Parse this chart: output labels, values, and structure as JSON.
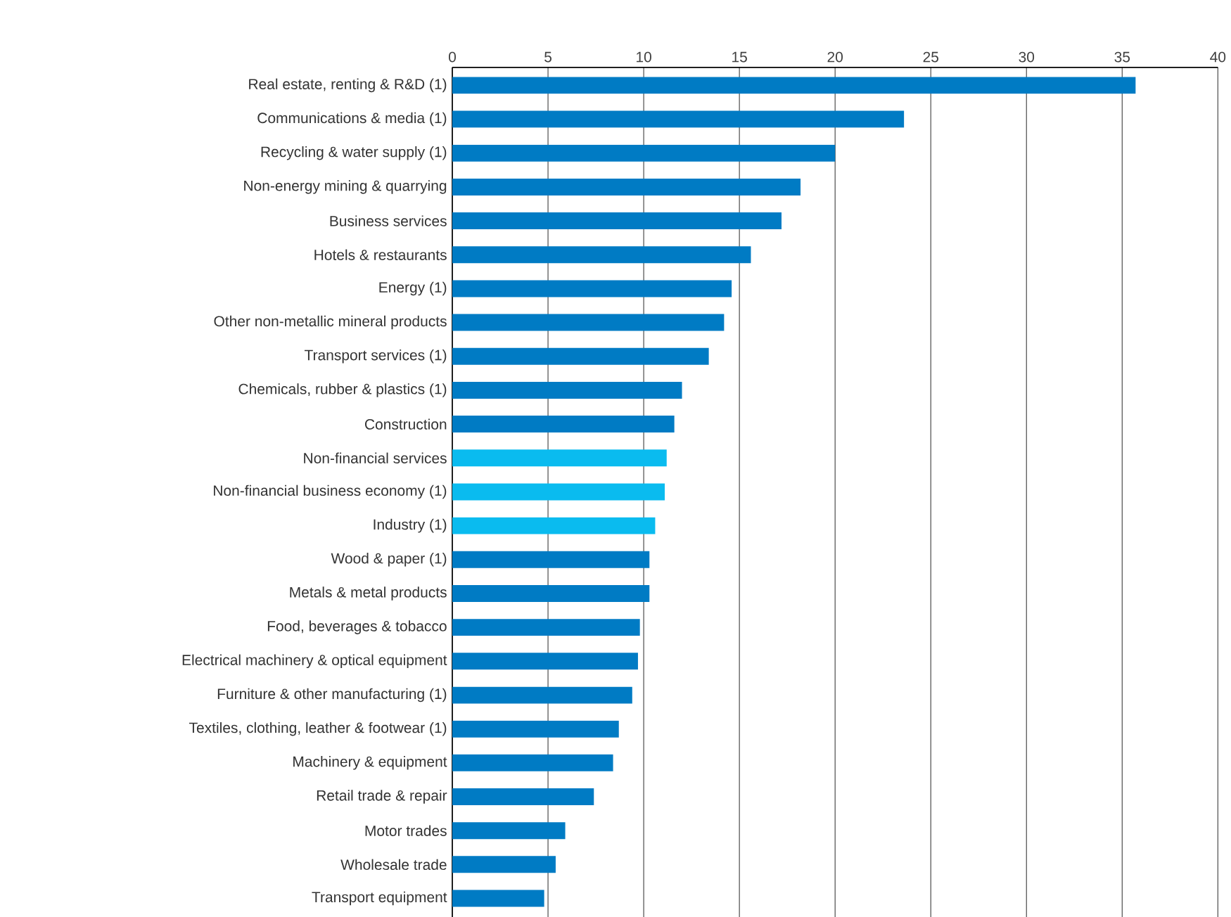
{
  "chart_data": {
    "type": "bar",
    "orientation": "horizontal",
    "categories": [
      "Real estate, renting & R&D (1)",
      "Communications & media (1)",
      "Recycling & water supply (1)",
      "Non-energy mining & quarrying",
      "Business services",
      "Hotels & restaurants",
      "Energy (1)",
      "Other non-metallic mineral products",
      "Transport services (1)",
      "Chemicals, rubber & plastics (1)",
      "Construction",
      "Non-financial services",
      "Non-financial business economy (1)",
      "Industry (1)",
      "Wood & paper (1)",
      "Metals & metal products",
      "Food, beverages & tobacco",
      "Electrical machinery & optical equipment",
      "Furniture & other manufacturing (1)",
      "Textiles, clothing, leather & footwear (1)",
      "Machinery & equipment",
      "Retail trade & repair",
      "Motor trades",
      "Wholesale trade",
      "Transport equipment"
    ],
    "values": [
      35.7,
      23.6,
      20.0,
      18.2,
      17.2,
      15.6,
      14.6,
      14.2,
      13.4,
      12.0,
      11.6,
      11.2,
      11.1,
      10.6,
      10.3,
      10.3,
      9.8,
      9.7,
      9.4,
      8.7,
      8.4,
      7.4,
      5.9,
      5.4,
      4.8
    ],
    "colors": [
      "#007bc4",
      "#007bc4",
      "#007bc4",
      "#007bc4",
      "#007bc4",
      "#007bc4",
      "#007bc4",
      "#007bc4",
      "#007bc4",
      "#007bc4",
      "#007bc4",
      "#0abbef",
      "#0abbef",
      "#0abbef",
      "#007bc4",
      "#007bc4",
      "#007bc4",
      "#007bc4",
      "#007bc4",
      "#007bc4",
      "#007bc4",
      "#007bc4",
      "#007bc4",
      "#007bc4",
      "#007bc4"
    ],
    "xlim": [
      0,
      40
    ],
    "xticks": [
      0,
      5,
      10,
      15,
      20,
      25,
      30,
      35,
      40
    ],
    "grid": "x"
  }
}
